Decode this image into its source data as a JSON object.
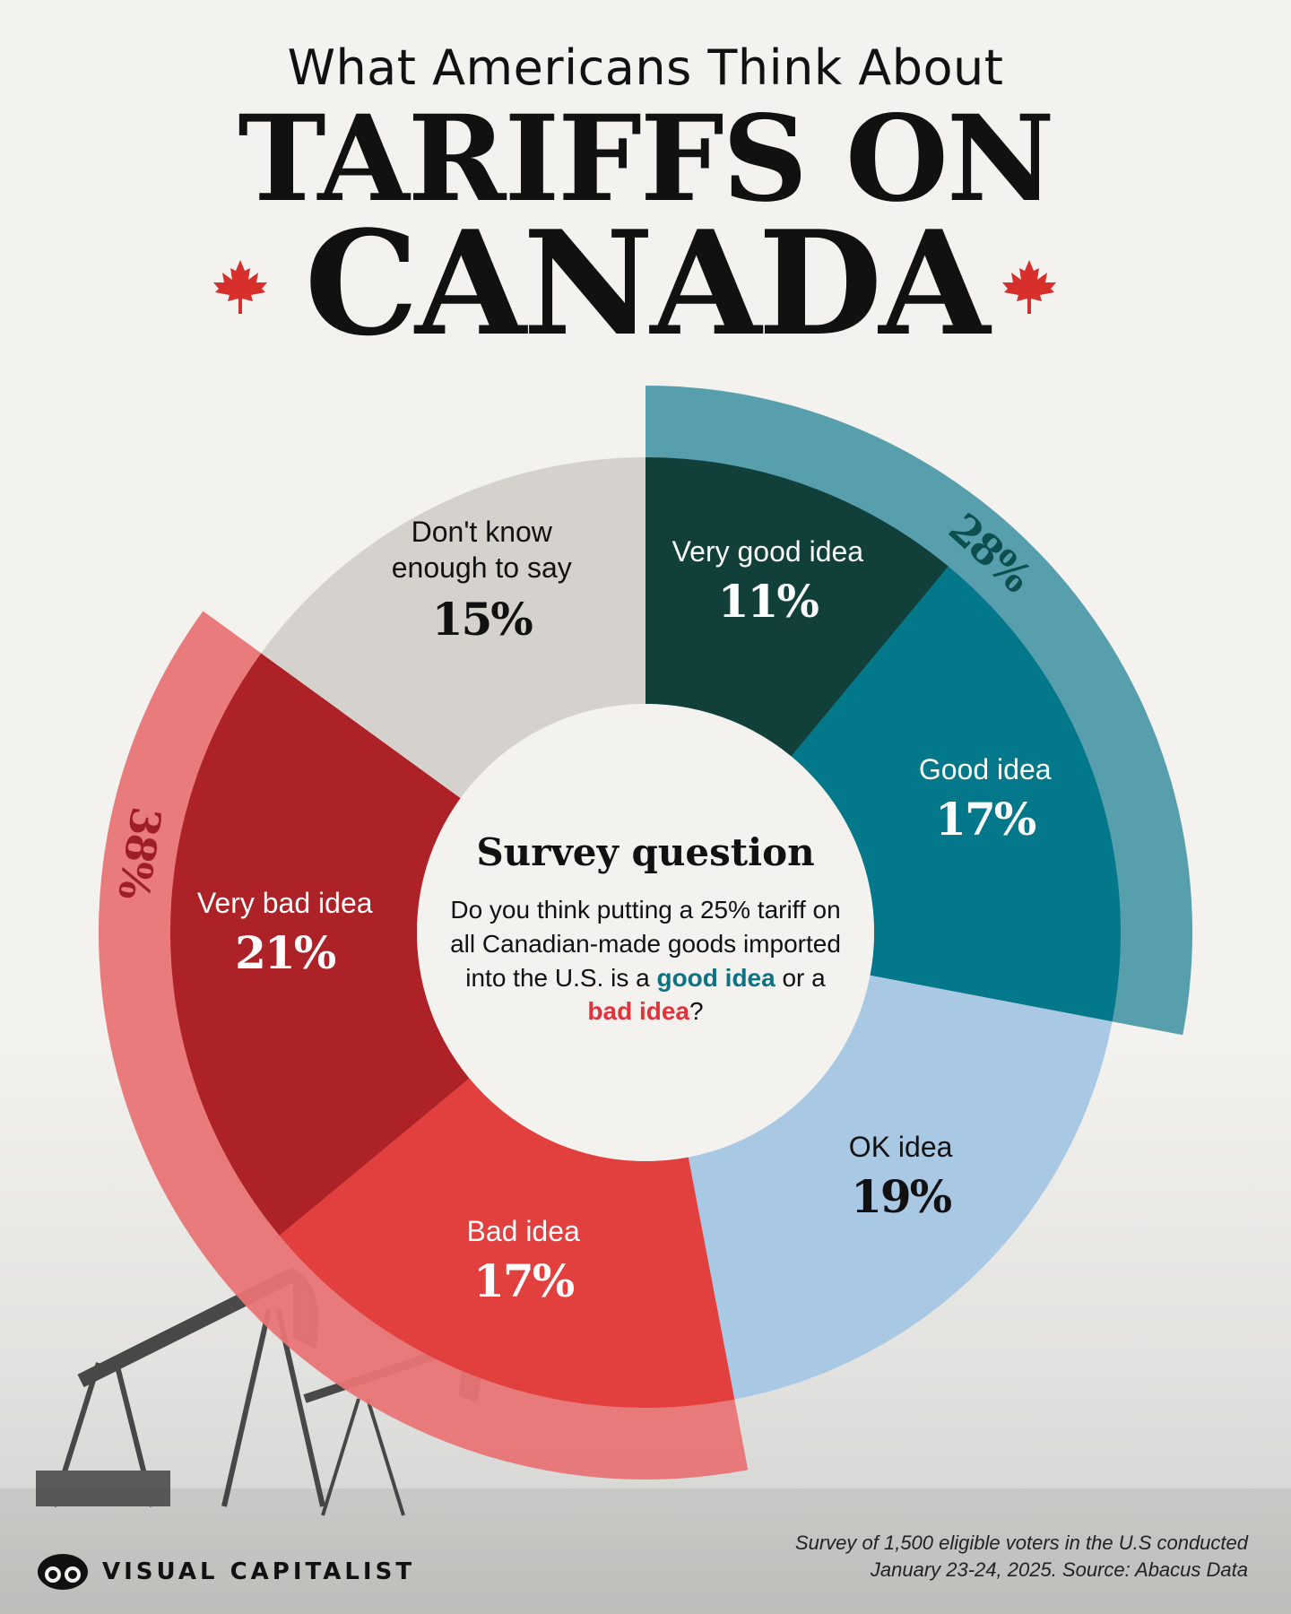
{
  "header": {
    "subtitle": "What Americans Think About",
    "title_line1": "TARIFFS ON",
    "title_line2": "CANADA"
  },
  "center": {
    "title": "Survey question",
    "question_part1": "Do you think putting a 25% tariff on all Canadian-made goods imported into the U.S. is a ",
    "good_text": "good idea",
    "question_middle": " or a ",
    "bad_text": "bad idea",
    "question_end": "?"
  },
  "chart_data": {
    "type": "pie",
    "title": "What Americans Think About TARIFFS ON CANADA",
    "slices": [
      {
        "label": "Very good idea",
        "value": 11,
        "value_label": "11%",
        "color": "#113f3a",
        "text_color": "#ffffff"
      },
      {
        "label": "Good idea",
        "value": 17,
        "value_label": "17%",
        "color": "#02788a",
        "text_color": "#ffffff"
      },
      {
        "label": "OK idea",
        "value": 19,
        "value_label": "19%",
        "color": "#a9c8e4",
        "text_color": "#111111"
      },
      {
        "label": "Bad idea",
        "value": 17,
        "value_label": "17%",
        "color": "#e2403f",
        "text_color": "#ffffff"
      },
      {
        "label": "Very bad idea",
        "value": 21,
        "value_label": "21%",
        "color": "#ac2226",
        "text_color": "#ffffff"
      },
      {
        "label": "Don't know enough to say",
        "value": 15,
        "value_label": "15%",
        "color": "#d5d2ce",
        "text_color": "#111111"
      }
    ],
    "groups": [
      {
        "label": "28%",
        "value": 28,
        "slices": [
          "Very good idea",
          "Good idea"
        ],
        "color": "#4f9aa9",
        "text_color": "#0d4e4f"
      },
      {
        "label": "38%",
        "value": 38,
        "slices": [
          "Bad idea",
          "Very bad idea"
        ],
        "color": "#e87476",
        "text_color": "#9d1f25"
      }
    ]
  },
  "footer": {
    "brand": "VISUAL CAPITALIST",
    "source_line1": "Survey of 1,500 eligible voters in the U.S conducted",
    "source_line2": "January 23-24, 2025. Source: Abacus Data"
  },
  "colors": {
    "leaf": "#d72f2c",
    "background": "#f3f2ee"
  }
}
